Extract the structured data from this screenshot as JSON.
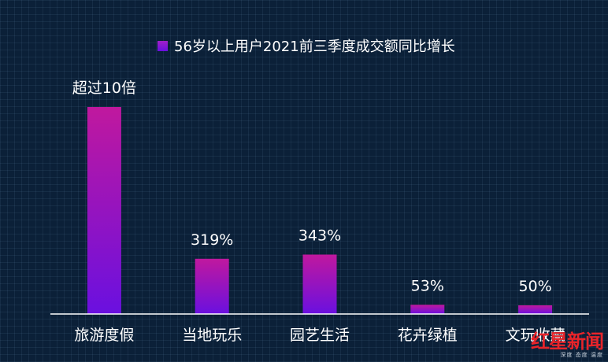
{
  "colors": {
    "background": "#0b2038",
    "bar_top": "#c0189e",
    "bar_bottom": "#6a10e0",
    "axis": "#ffffff",
    "text": "#ffffff",
    "watermark": "#e8242a"
  },
  "legend": {
    "label": "56岁以上用户2021前三季度成交额同比增长"
  },
  "watermark": {
    "logo": "红星新闻",
    "sub": "深度 态度 温度"
  },
  "chart_data": {
    "type": "bar",
    "categories": [
      "旅游度假",
      "当地玩乐",
      "园艺生活",
      "花卉绿植",
      "文玩收藏"
    ],
    "series": [
      {
        "name": "56岁以上用户2021前三季度成交额同比增长",
        "values": [
          1000,
          319,
          343,
          53,
          50
        ]
      }
    ],
    "data_labels": [
      "超过10倍",
      "319%",
      "343%",
      "53%",
      "50%"
    ],
    "legend_position": "top",
    "grid": false
  }
}
